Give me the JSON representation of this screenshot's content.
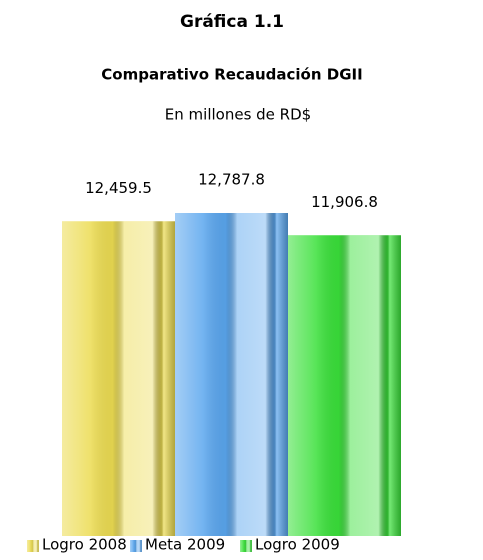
{
  "chart_data": {
    "type": "bar",
    "title": "Gráfica 1.1",
    "subtitle": "Comparativo Recaudación DGII",
    "unit_note": "En millones de RD$",
    "categories": [
      "Logro 2008",
      "Meta 2009",
      "Logro 2009"
    ],
    "values": [
      12459.5,
      12787.8,
      11906.8
    ],
    "value_labels": [
      "12,459.5",
      "12,787.8",
      "11,906.8"
    ],
    "colors": [
      "#ecdc52",
      "#5aa6ee",
      "#3ae03a"
    ],
    "legend": "bottom"
  }
}
